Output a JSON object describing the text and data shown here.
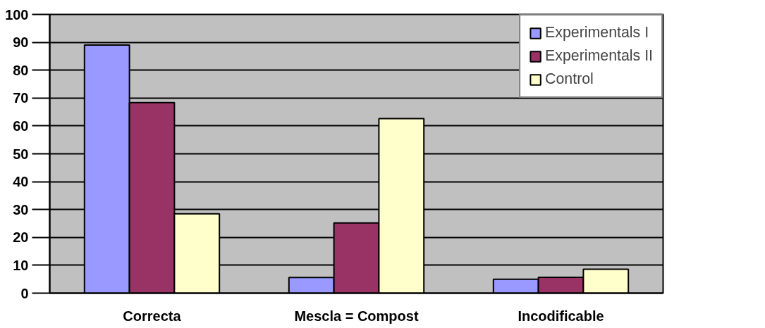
{
  "chart_data": {
    "type": "bar",
    "categories": [
      "Correcta",
      "Mescla = Compost",
      "Incodificable"
    ],
    "series": [
      {
        "name": "Experimentals I",
        "color": "#9999ff",
        "values": [
          89.0,
          5.6,
          5.0
        ]
      },
      {
        "name": "Experimentals II",
        "color": "#993366",
        "values": [
          68.4,
          25.2,
          5.7
        ]
      },
      {
        "name": "Control",
        "color": "#ffffcc",
        "values": [
          28.5,
          62.6,
          8.6
        ]
      }
    ],
    "ylim": [
      0,
      100
    ],
    "yticks": [
      0,
      10,
      20,
      30,
      40,
      50,
      60,
      70,
      80,
      90,
      100
    ],
    "grid": "y",
    "legend": "top right"
  }
}
